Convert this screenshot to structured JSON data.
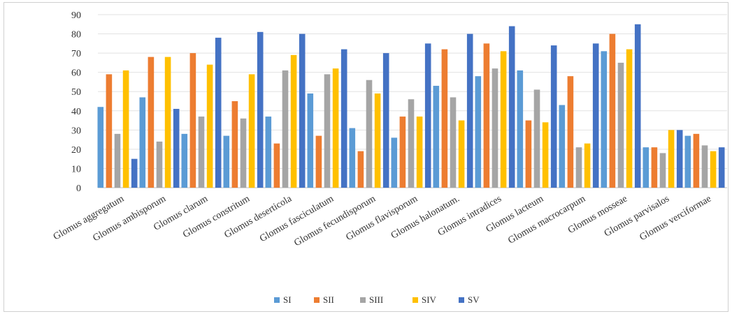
{
  "chart_data": {
    "type": "bar",
    "title": "",
    "xlabel": "",
    "ylabel": "",
    "ylim": [
      0,
      90
    ],
    "yticks": [
      0,
      10,
      20,
      30,
      40,
      50,
      60,
      70,
      80,
      90
    ],
    "grid": "horizontal",
    "legend_position": "bottom",
    "categories": [
      "Glomus aggregatum",
      "Glomus ambisporum",
      "Glomus clarum",
      "Glomus constritum",
      "Glomus deserticola",
      "Glomus fasciculatum",
      "Glomus fecundisporum",
      "Glomus flavisporum",
      "Glomus halonatum.",
      "Glomus intradices",
      "Glomus lacteum",
      "Glomus macrocarpum",
      "Glomus mosseae",
      "Glomus parvisalos",
      "Glomus verciformae"
    ],
    "series": [
      {
        "name": "SI",
        "color": "#5b9bd5",
        "values": [
          42,
          47,
          28,
          27,
          37,
          49,
          31,
          26,
          53,
          58,
          61,
          43,
          71,
          21,
          27
        ]
      },
      {
        "name": "SII",
        "color": "#ed7d31",
        "values": [
          59,
          68,
          70,
          45,
          23,
          27,
          19,
          37,
          72,
          75,
          35,
          58,
          80,
          21,
          28
        ]
      },
      {
        "name": "SIII",
        "color": "#a5a5a5",
        "values": [
          28,
          24,
          37,
          36,
          61,
          59,
          56,
          46,
          47,
          62,
          51,
          21,
          65,
          18,
          22
        ]
      },
      {
        "name": "SIV",
        "color": "#ffc000",
        "values": [
          61,
          68,
          64,
          59,
          69,
          62,
          49,
          37,
          35,
          71,
          34,
          23,
          72,
          30,
          19
        ]
      },
      {
        "name": "SV",
        "color": "#4472c4",
        "values": [
          15,
          41,
          78,
          81,
          80,
          72,
          70,
          75,
          80,
          84,
          74,
          75,
          85,
          30,
          21
        ]
      }
    ]
  }
}
